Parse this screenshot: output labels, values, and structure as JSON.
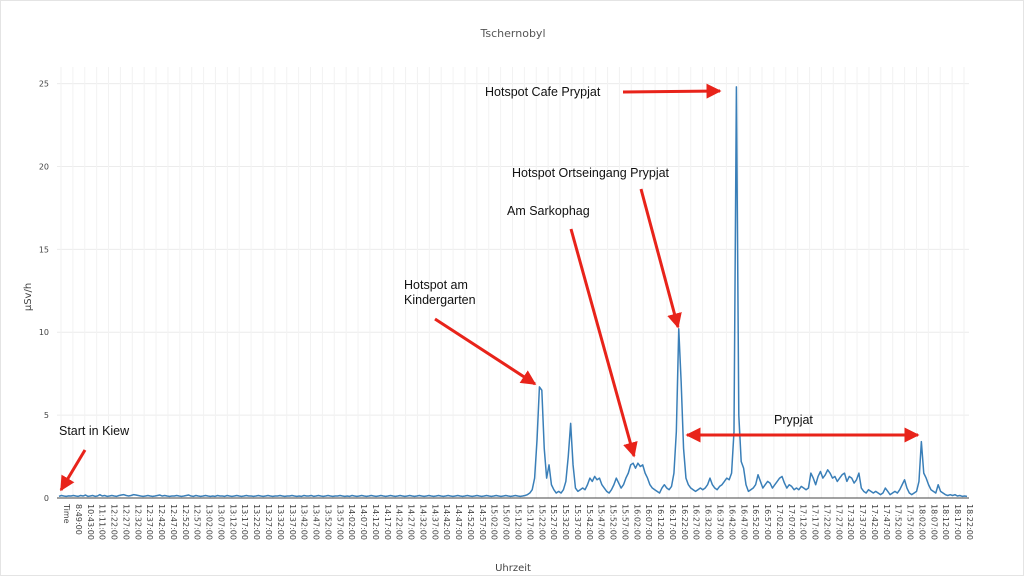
{
  "chart_data": {
    "type": "line",
    "title": "Tschernobyl",
    "xlabel": "Uhrzeit",
    "ylabel": "µSv/h",
    "ylim": [
      0,
      26
    ],
    "yticks": [
      0,
      5,
      10,
      15,
      20,
      25
    ],
    "grid": true,
    "line_color": "#3a7fb8",
    "arrow_color": "#e8231a",
    "first_x_label": "Time",
    "x_tick_labels": [
      "8:49:00",
      "10:43:00",
      "11:11:00",
      "12:22:00",
      "12:27:00",
      "12:32:00",
      "12:37:00",
      "12:42:00",
      "12:47:00",
      "12:52:00",
      "12:57:00",
      "13:02:00",
      "13:07:00",
      "13:12:00",
      "13:17:00",
      "13:22:00",
      "13:27:00",
      "13:32:00",
      "13:37:00",
      "13:42:00",
      "13:47:00",
      "13:52:00",
      "13:57:00",
      "14:02:00",
      "14:07:00",
      "14:12:00",
      "14:17:00",
      "14:22:00",
      "14:27:00",
      "14:32:00",
      "14:37:00",
      "14:42:00",
      "14:47:00",
      "14:52:00",
      "14:57:00",
      "15:02:00",
      "15:07:00",
      "15:12:00",
      "15:17:00",
      "15:22:00",
      "15:27:00",
      "15:32:00",
      "15:37:00",
      "15:42:00",
      "15:47:00",
      "15:52:00",
      "15:57:00",
      "16:02:00",
      "16:07:00",
      "16:12:00",
      "16:17:00",
      "16:22:00",
      "16:27:00",
      "16:32:00",
      "16:37:00",
      "16:42:00",
      "16:47:00",
      "16:52:00",
      "16:57:00",
      "17:02:00",
      "17:07:00",
      "17:12:00",
      "17:17:00",
      "17:22:00",
      "17:27:00",
      "17:32:00",
      "17:37:00",
      "17:42:00",
      "17:47:00",
      "17:52:00",
      "17:57:00",
      "18:02:00",
      "18:07:00",
      "18:12:00",
      "18:17:00",
      "18:22:00"
    ],
    "series": [
      {
        "values": [
          0.1,
          0.15,
          0.12,
          0.1,
          0.13,
          0.12,
          0.15,
          0.12,
          0.1,
          0.15,
          0.12,
          0.18,
          0.1,
          0.12,
          0.15,
          0.1,
          0.12,
          0.2,
          0.12,
          0.15,
          0.1,
          0.12,
          0.15,
          0.12,
          0.1,
          0.15,
          0.18,
          0.2,
          0.15,
          0.12,
          0.15,
          0.2,
          0.18,
          0.15,
          0.12,
          0.1,
          0.12,
          0.15,
          0.12,
          0.1,
          0.12,
          0.15,
          0.18,
          0.12,
          0.15,
          0.12,
          0.1,
          0.12,
          0.12,
          0.15,
          0.12,
          0.1,
          0.12,
          0.15,
          0.18,
          0.12,
          0.1,
          0.15,
          0.12,
          0.1,
          0.12,
          0.15,
          0.12,
          0.1,
          0.12,
          0.1,
          0.15,
          0.12,
          0.12,
          0.1,
          0.15,
          0.12,
          0.1,
          0.12,
          0.15,
          0.12,
          0.1,
          0.12,
          0.15,
          0.12,
          0.12,
          0.1,
          0.12,
          0.15,
          0.12,
          0.1,
          0.12,
          0.15,
          0.12,
          0.1,
          0.12,
          0.12,
          0.15,
          0.12,
          0.1,
          0.12,
          0.12,
          0.15,
          0.12,
          0.1,
          0.12,
          0.1,
          0.15,
          0.12,
          0.12,
          0.15,
          0.1,
          0.12,
          0.15,
          0.12,
          0.1,
          0.12,
          0.15,
          0.12,
          0.1,
          0.12,
          0.12,
          0.15,
          0.12,
          0.1,
          0.12,
          0.1,
          0.15,
          0.12,
          0.1,
          0.12,
          0.15,
          0.12,
          0.1,
          0.12,
          0.15,
          0.12,
          0.1,
          0.12,
          0.15,
          0.12,
          0.1,
          0.12,
          0.15,
          0.12,
          0.1,
          0.12,
          0.15,
          0.12,
          0.1,
          0.12,
          0.15,
          0.12,
          0.1,
          0.12,
          0.15,
          0.12,
          0.1,
          0.12,
          0.15,
          0.12,
          0.1,
          0.12,
          0.15,
          0.12,
          0.1,
          0.12,
          0.15,
          0.12,
          0.1,
          0.12,
          0.15,
          0.12,
          0.1,
          0.12,
          0.15,
          0.12,
          0.1,
          0.12,
          0.15,
          0.12,
          0.1,
          0.12,
          0.15,
          0.12,
          0.1,
          0.12,
          0.15,
          0.12,
          0.1,
          0.12,
          0.15,
          0.12,
          0.1,
          0.12,
          0.15,
          0.12,
          0.1,
          0.12,
          0.15,
          0.2,
          0.3,
          0.5,
          1.2,
          3.5,
          6.7,
          6.5,
          3.0,
          1.2,
          2.0,
          0.8,
          0.5,
          0.3,
          0.4,
          0.3,
          0.5,
          1.0,
          2.5,
          4.5,
          2.0,
          0.6,
          0.4,
          0.5,
          0.6,
          0.5,
          0.8,
          1.2,
          1.0,
          1.3,
          1.1,
          1.2,
          0.8,
          0.6,
          0.4,
          0.3,
          0.5,
          0.8,
          1.2,
          0.9,
          0.6,
          0.8,
          1.2,
          1.5,
          2.0,
          2.1,
          1.8,
          2.1,
          1.9,
          2.0,
          1.5,
          1.2,
          0.8,
          0.6,
          0.5,
          0.4,
          0.3,
          0.6,
          0.8,
          0.6,
          0.5,
          0.7,
          1.5,
          4.0,
          10.2,
          7.0,
          3.0,
          1.2,
          0.8,
          0.6,
          0.5,
          0.4,
          0.5,
          0.6,
          0.5,
          0.6,
          0.8,
          1.2,
          0.8,
          0.6,
          0.5,
          0.7,
          0.8,
          1.0,
          1.2,
          1.1,
          1.5,
          4.0,
          24.8,
          5.0,
          2.2,
          1.8,
          0.8,
          0.4,
          0.5,
          0.6,
          0.8,
          1.4,
          1.0,
          0.6,
          0.8,
          1.0,
          0.9,
          0.6,
          0.8,
          1.0,
          1.2,
          1.3,
          0.9,
          0.6,
          0.8,
          0.7,
          0.5,
          0.6,
          0.5,
          0.7,
          0.6,
          0.5,
          0.6,
          1.5,
          1.2,
          0.8,
          1.3,
          1.6,
          1.2,
          1.4,
          1.7,
          1.5,
          1.2,
          1.3,
          1.0,
          1.2,
          1.4,
          1.5,
          1.0,
          1.3,
          1.2,
          0.9,
          1.1,
          1.5,
          0.6,
          0.4,
          0.3,
          0.5,
          0.4,
          0.3,
          0.4,
          0.3,
          0.2,
          0.3,
          0.6,
          0.4,
          0.2,
          0.3,
          0.4,
          0.3,
          0.5,
          0.8,
          1.1,
          0.6,
          0.3,
          0.2,
          0.3,
          0.4,
          1.0,
          3.4,
          1.5,
          1.2,
          0.8,
          0.5,
          0.4,
          0.3,
          0.8,
          0.4,
          0.3,
          0.2,
          0.15,
          0.2,
          0.15,
          0.2,
          0.12,
          0.15,
          0.1,
          0.12,
          0.1
        ]
      }
    ],
    "annotations": [
      {
        "lines": [
          "Start in Kiew"
        ]
      },
      {
        "lines": [
          "Hotspot am",
          "Kindergarten"
        ]
      },
      {
        "lines": [
          "Am Sarkophag"
        ]
      },
      {
        "lines": [
          "Hotspot Ortseingang Prypjat"
        ]
      },
      {
        "lines": [
          "Hotspot Cafe Prypjat"
        ]
      },
      {
        "lines": [
          "Prypjat"
        ]
      }
    ]
  }
}
